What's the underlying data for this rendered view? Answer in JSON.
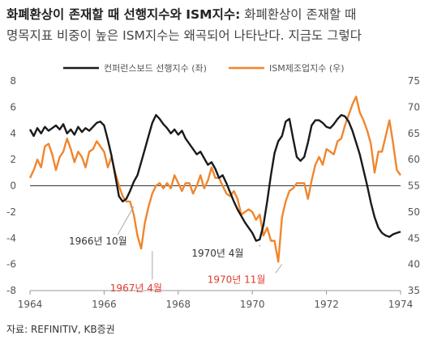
{
  "title": {
    "bold": "화폐환상이 존재할 때 선행지수와 ISM지수:",
    "rest": " 화폐환상이 존재할 때",
    "line2": "명목지표 비중이 높은 ISM지수는 왜곡되어 나타난다. 지금도 그렇다"
  },
  "source": "자료: REFINITIV, KB증권",
  "colors": {
    "leading": "#1a1a1a",
    "ism": "#f0862e",
    "red": "#e03b2e",
    "axis": "#999999"
  },
  "chart_data": {
    "type": "line",
    "x_range": [
      1964,
      1974
    ],
    "x_ticks": [
      "1964",
      "1966",
      "1968",
      "1970",
      "1972",
      "1974"
    ],
    "y_left": {
      "range": [
        -8,
        8
      ],
      "ticks": [
        "8",
        "6",
        "4",
        "2",
        "0",
        "-2",
        "-4",
        "-6",
        "-8"
      ]
    },
    "y_right": {
      "range": [
        35,
        75
      ],
      "ticks": [
        "75",
        "70",
        "65",
        "60",
        "55",
        "50",
        "45",
        "40",
        "35"
      ]
    },
    "series": [
      {
        "name": "컨퍼런스보드 선행지수 (좌)",
        "axis": "left",
        "x": [
          1964.0,
          1964.1,
          1964.2,
          1964.3,
          1964.4,
          1964.5,
          1964.6,
          1964.7,
          1964.8,
          1964.9,
          1965.0,
          1965.1,
          1965.2,
          1965.3,
          1965.4,
          1965.5,
          1965.6,
          1965.7,
          1965.8,
          1965.9,
          1966.0,
          1966.1,
          1966.2,
          1966.3,
          1966.4,
          1966.5,
          1966.6,
          1966.7,
          1966.8,
          1966.9,
          1967.0,
          1967.1,
          1967.2,
          1967.3,
          1967.4,
          1967.5,
          1967.6,
          1967.7,
          1967.8,
          1967.9,
          1968.0,
          1968.1,
          1968.2,
          1968.3,
          1968.4,
          1968.5,
          1968.6,
          1968.7,
          1968.8,
          1968.9,
          1969.0,
          1969.1,
          1969.2,
          1969.3,
          1969.4,
          1969.5,
          1969.6,
          1969.7,
          1969.8,
          1969.9,
          1970.0,
          1970.1,
          1970.2,
          1970.3,
          1970.4,
          1970.5,
          1970.6,
          1970.7,
          1970.8,
          1970.9,
          1971.0,
          1971.1,
          1971.2,
          1971.3,
          1971.4,
          1971.5,
          1971.6,
          1971.7,
          1971.8,
          1971.9,
          1972.0,
          1972.1,
          1972.2,
          1972.3,
          1972.4,
          1972.5,
          1972.6,
          1972.7,
          1972.8,
          1972.9,
          1973.0,
          1973.1,
          1973.2,
          1973.3,
          1973.4,
          1973.5,
          1973.6,
          1973.7,
          1973.8,
          1973.9,
          1974.0
        ],
        "values": [
          4.3,
          3.8,
          4.4,
          4.0,
          4.5,
          4.2,
          4.4,
          4.6,
          4.3,
          4.7,
          4.0,
          4.3,
          3.9,
          4.5,
          4.1,
          4.4,
          4.2,
          4.5,
          4.8,
          4.9,
          4.6,
          3.5,
          2.3,
          0.8,
          -0.8,
          -1.2,
          -1.0,
          -0.4,
          0.3,
          0.8,
          1.8,
          2.8,
          3.8,
          4.8,
          5.4,
          5.1,
          4.7,
          4.4,
          4.0,
          4.3,
          3.9,
          4.2,
          3.6,
          3.2,
          2.8,
          2.4,
          2.6,
          2.1,
          1.6,
          1.8,
          1.3,
          0.6,
          0.8,
          0.2,
          -0.5,
          -1.2,
          -1.8,
          -2.3,
          -2.8,
          -3.2,
          -3.6,
          -4.2,
          -4.1,
          -3.0,
          -1.2,
          0.8,
          2.5,
          3.4,
          3.8,
          4.9,
          5.1,
          3.6,
          2.2,
          1.9,
          2.2,
          3.3,
          4.6,
          5.0,
          5.0,
          4.8,
          4.5,
          4.4,
          4.7,
          5.1,
          5.4,
          5.3,
          4.9,
          4.2,
          3.3,
          2.4,
          1.2,
          0.0,
          -1.3,
          -2.4,
          -3.2,
          -3.6,
          -3.8,
          -3.9,
          -3.7,
          -3.6,
          -3.5
        ]
      },
      {
        "name": "ISM제조업지수 (우)",
        "axis": "right",
        "x": [
          1964.0,
          1964.1,
          1964.2,
          1964.3,
          1964.4,
          1964.5,
          1964.6,
          1964.7,
          1964.8,
          1964.9,
          1965.0,
          1965.1,
          1965.2,
          1965.3,
          1965.4,
          1965.5,
          1965.6,
          1965.7,
          1965.8,
          1965.9,
          1966.0,
          1966.1,
          1966.2,
          1966.3,
          1966.4,
          1966.5,
          1966.6,
          1966.7,
          1966.8,
          1966.9,
          1967.0,
          1967.1,
          1967.2,
          1967.3,
          1967.4,
          1967.5,
          1967.6,
          1967.7,
          1967.8,
          1967.9,
          1968.0,
          1968.1,
          1968.2,
          1968.3,
          1968.4,
          1968.5,
          1968.6,
          1968.7,
          1968.8,
          1968.9,
          1969.0,
          1969.1,
          1969.2,
          1969.3,
          1969.4,
          1969.5,
          1969.6,
          1969.7,
          1969.8,
          1969.9,
          1970.0,
          1970.1,
          1970.2,
          1970.3,
          1970.4,
          1970.5,
          1970.6,
          1970.7,
          1970.8,
          1970.9,
          1971.0,
          1971.1,
          1971.2,
          1971.3,
          1971.4,
          1971.5,
          1971.6,
          1971.7,
          1971.8,
          1971.9,
          1972.0,
          1972.1,
          1972.2,
          1972.3,
          1972.4,
          1972.5,
          1972.6,
          1972.7,
          1972.8,
          1972.9,
          1973.0,
          1973.1,
          1973.2,
          1973.3,
          1973.4,
          1973.5,
          1973.6,
          1973.7,
          1973.8,
          1973.9,
          1974.0
        ],
        "values": [
          56.5,
          58.0,
          60.0,
          58.5,
          62.5,
          63.0,
          61.0,
          58.0,
          60.5,
          61.5,
          64.0,
          62.0,
          59.5,
          61.5,
          60.5,
          58.5,
          61.5,
          62.0,
          63.5,
          62.5,
          61.5,
          58.5,
          60.5,
          57.5,
          55.0,
          53.0,
          52.0,
          52.0,
          49.5,
          45.5,
          43.0,
          48.0,
          51.0,
          53.5,
          55.0,
          55.5,
          54.5,
          55.5,
          54.5,
          57.0,
          55.5,
          54.0,
          55.5,
          55.5,
          53.5,
          55.0,
          57.0,
          54.5,
          56.0,
          58.5,
          56.5,
          56.5,
          55.0,
          53.5,
          53.0,
          54.0,
          52.5,
          49.5,
          50.0,
          50.5,
          50.0,
          48.5,
          49.5,
          45.5,
          47.0,
          44.5,
          44.5,
          40.5,
          49.0,
          52.0,
          54.0,
          54.5,
          55.5,
          55.5,
          55.5,
          52.5,
          56.0,
          59.0,
          60.5,
          59.0,
          62.0,
          61.5,
          61.0,
          63.5,
          64.0,
          66.5,
          68.5,
          70.5,
          72.0,
          69.0,
          67.5,
          65.5,
          63.0,
          57.5,
          61.5,
          61.5,
          64.5,
          67.5,
          63.0,
          58.0,
          57.0
        ]
      }
    ],
    "annotations": [
      {
        "text": "1966년 10월",
        "color": "dark",
        "x": 1966.8,
        "y_left": -1.4
      },
      {
        "text": "1967년 4월",
        "color": "red",
        "x": 1967.3,
        "y_right": 43.0
      },
      {
        "text": "1970년 4월",
        "color": "dark",
        "x": 1970.2,
        "y_left": -4.3
      },
      {
        "text": "1970년 11월",
        "color": "red",
        "x": 1970.8,
        "y_right": 40.5
      }
    ]
  }
}
